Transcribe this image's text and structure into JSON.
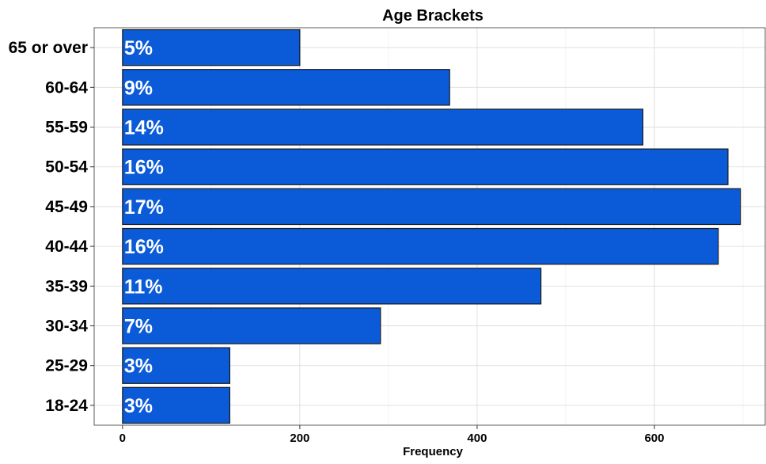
{
  "chart_data": {
    "type": "bar",
    "orientation": "horizontal",
    "title": "Age Brackets",
    "xlabel": "Frequency",
    "ylabel": "",
    "xlim": [
      -32,
      725
    ],
    "x_ticks": [
      0,
      200,
      400,
      600
    ],
    "grid": true,
    "bar_color": "#0B5BD8",
    "categories": [
      "18-24",
      "25-29",
      "30-34",
      "35-39",
      "40-44",
      "45-49",
      "50-54",
      "55-59",
      "60-64",
      "65 or over"
    ],
    "values": [
      121,
      121,
      291,
      472,
      672,
      697,
      683,
      587,
      369,
      200
    ],
    "data_labels": [
      "3%",
      "3%",
      "7%",
      "11%",
      "16%",
      "17%",
      "16%",
      "14%",
      "9%",
      "5%"
    ]
  }
}
